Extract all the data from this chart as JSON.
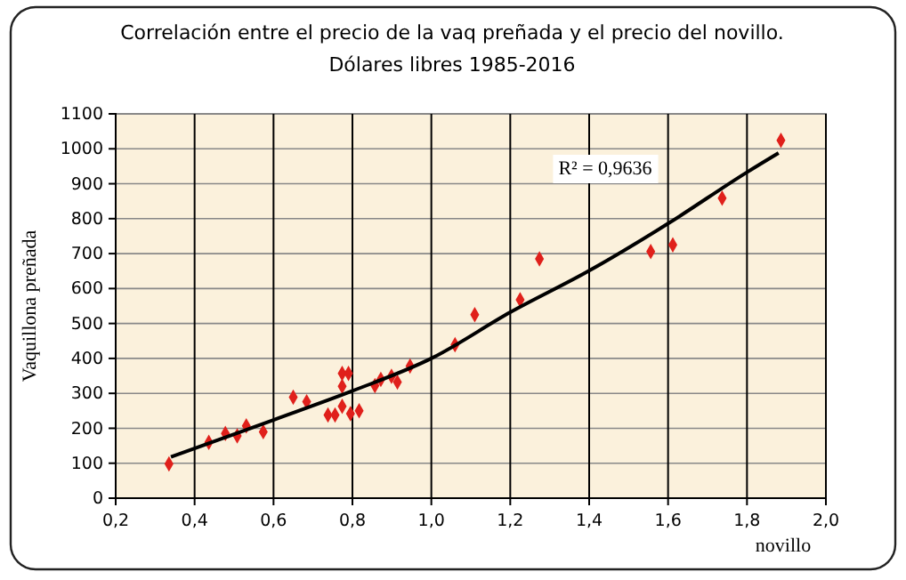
{
  "chart_data": {
    "type": "scatter",
    "title": "Correlación entre el precio de la vaq preñada y el precio del novillo.",
    "subtitle": "Dólares libres 1985-2016",
    "xlabel": "novillo",
    "ylabel": "Vaquillona preñada",
    "annotations": [
      "R² = 0,9636"
    ],
    "xlim": [
      0.2,
      2.0
    ],
    "ylim": [
      0,
      1100
    ],
    "xticks": [
      {
        "value": 0.2,
        "label": "0,2"
      },
      {
        "value": 0.4,
        "label": "0,4"
      },
      {
        "value": 0.6,
        "label": "0,6"
      },
      {
        "value": 0.8,
        "label": "0,8"
      },
      {
        "value": 1.0,
        "label": "1,0"
      },
      {
        "value": 1.2,
        "label": "1,2"
      },
      {
        "value": 1.4,
        "label": "1,4"
      },
      {
        "value": 1.6,
        "label": "1,6"
      },
      {
        "value": 1.8,
        "label": "1,8"
      },
      {
        "value": 2.0,
        "label": "2,0"
      }
    ],
    "yticks": [
      0,
      100,
      200,
      300,
      400,
      500,
      600,
      700,
      800,
      900,
      1000,
      1100
    ],
    "grid": true,
    "marker": "diamond",
    "series": [
      {
        "color": "#e0201b",
        "x": [
          0.335,
          0.436,
          0.478,
          0.508,
          0.531,
          0.574,
          0.65,
          0.684,
          0.738,
          0.756,
          0.774,
          0.79,
          0.774,
          0.774,
          0.795,
          0.817,
          0.857,
          0.872,
          0.899,
          0.914,
          0.946,
          1.06,
          1.11,
          1.225,
          1.274,
          1.556,
          1.612,
          1.737,
          1.886
        ],
        "values": [
          98,
          160,
          185,
          178,
          207,
          190,
          289,
          276,
          238,
          238,
          357,
          357,
          320,
          263,
          242,
          250,
          322,
          340,
          349,
          332,
          378,
          439,
          525,
          568,
          685,
          706,
          725,
          859,
          1024
        ]
      },
      {
        "type": "line",
        "color": "#000000",
        "marker": "none",
        "x": [
          0.34,
          0.6,
          0.8,
          1.0,
          1.2,
          1.4,
          1.6,
          1.8,
          1.88
        ],
        "values": [
          118,
          224,
          307,
          400,
          532,
          651,
          786,
          933,
          988
        ]
      }
    ]
  }
}
